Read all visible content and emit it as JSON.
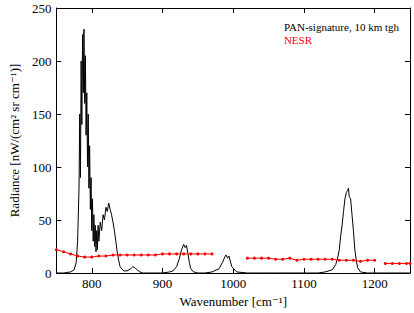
{
  "chart_data": {
    "type": "line",
    "x_label": "Wavenumber [cm⁻¹]",
    "y_label": "Radiance [nW/(cm² sr cm⁻¹)]",
    "xlim": [
      750,
      1250
    ],
    "xticks": [
      800,
      900,
      1000,
      1100,
      1200
    ],
    "ylim": [
      0,
      250
    ],
    "yticks": [
      0,
      50,
      100,
      150,
      200,
      250
    ],
    "grid": false,
    "legend": "upper right",
    "series": [
      {
        "name": "PAN-signature, 10 km tgh",
        "color": "#000000",
        "line_style": "solid",
        "marker": "none",
        "x": [
          750,
          760,
          770,
          775,
          778,
          780,
          782,
          783,
          784,
          785,
          786,
          787,
          788,
          789,
          790,
          791,
          792,
          793,
          794,
          795,
          796,
          797,
          798,
          799,
          800,
          801,
          802,
          803,
          804,
          805,
          806,
          807,
          808,
          809,
          810,
          812,
          814,
          816,
          818,
          820,
          822,
          824,
          826,
          828,
          830,
          832,
          834,
          836,
          838,
          840,
          845,
          850,
          855,
          858,
          861,
          864,
          868,
          872,
          880,
          890,
          900,
          910,
          915,
          920,
          924,
          927,
          930,
          932,
          934,
          936,
          938,
          940,
          944,
          950,
          960,
          970,
          980,
          985,
          988,
          990,
          992,
          994,
          998,
          1005,
          1020,
          1040,
          1060,
          1080,
          1100,
          1120,
          1130,
          1140,
          1145,
          1148,
          1150,
          1152,
          1154,
          1156,
          1158,
          1160,
          1162,
          1163,
          1164,
          1166,
          1168,
          1170,
          1172,
          1174,
          1176,
          1180,
          1190,
          1200,
          1220,
          1250
        ],
        "values": [
          0,
          0,
          1,
          3,
          10,
          30,
          80,
          150,
          90,
          200,
          140,
          225,
          170,
          230,
          160,
          205,
          130,
          170,
          100,
          150,
          80,
          120,
          60,
          90,
          40,
          70,
          30,
          55,
          25,
          45,
          20,
          40,
          22,
          45,
          30,
          48,
          40,
          55,
          50,
          62,
          58,
          66,
          60,
          55,
          48,
          40,
          30,
          20,
          12,
          6,
          2,
          2,
          4,
          6,
          5,
          3,
          1,
          0,
          0,
          0,
          0,
          1,
          2,
          6,
          14,
          22,
          27,
          24,
          26,
          18,
          10,
          4,
          1,
          0,
          0,
          1,
          4,
          10,
          15,
          17,
          14,
          16,
          6,
          1,
          0,
          0,
          0,
          0,
          0,
          0,
          1,
          3,
          8,
          15,
          22,
          35,
          45,
          58,
          70,
          76,
          78,
          80,
          72,
          70,
          55,
          40,
          22,
          12,
          5,
          1,
          0,
          0,
          0,
          0
        ]
      },
      {
        "name": "NESR",
        "color": "#ff0000",
        "line_style": "solid",
        "marker": "circle",
        "x": [
          750,
          760,
          770,
          780,
          790,
          800,
          810,
          820,
          830,
          840,
          850,
          860,
          870,
          880,
          890,
          900,
          910,
          920,
          930,
          940,
          950,
          960,
          970,
          985,
          1020,
          1030,
          1040,
          1050,
          1060,
          1070,
          1080,
          1090,
          1100,
          1110,
          1120,
          1130,
          1140,
          1150,
          1160,
          1170,
          1180,
          1190,
          1200,
          1208,
          1215,
          1225,
          1235,
          1245,
          1250
        ],
        "values": [
          22,
          20,
          18,
          16,
          15,
          15,
          16,
          16,
          17,
          17,
          17,
          17,
          17,
          17,
          17,
          18,
          18,
          18,
          18,
          18,
          18,
          18,
          18,
          null,
          14,
          14,
          14,
          14,
          13,
          13,
          14,
          12,
          13,
          13,
          13,
          13,
          13,
          12,
          12,
          12,
          11,
          12,
          12,
          null,
          9,
          9,
          9,
          9,
          9
        ]
      }
    ]
  }
}
